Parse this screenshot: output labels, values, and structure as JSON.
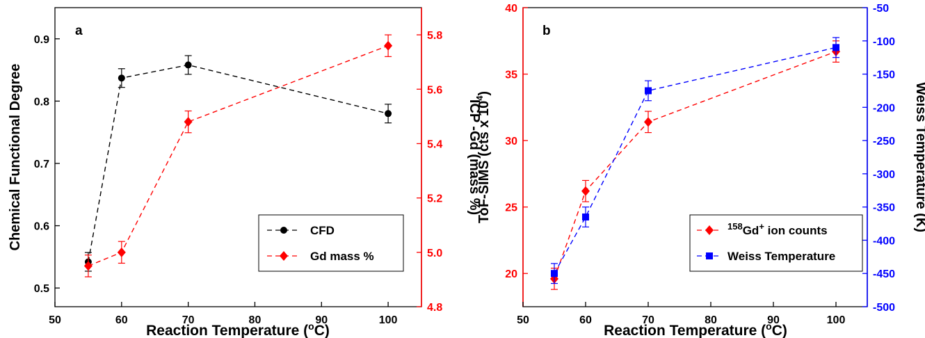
{
  "chart_data": [
    {
      "panel_label": "a",
      "type": "line",
      "xlabel": "Reaction Temperature (",
      "xlabel_deg": "o",
      "xlabel_tail": "C)",
      "ylabel": "Chemical Functional Degree",
      "ylabel_right": "ICP -Gd (mass %)",
      "xlim": [
        50,
        105
      ],
      "ylim": [
        0.47,
        0.95
      ],
      "ylim_right": [
        4.8,
        5.9
      ],
      "xticks": [
        "50",
        "60",
        "70",
        "80",
        "90",
        "100"
      ],
      "yticks": [
        "0.5",
        "0.6",
        "0.7",
        "0.8",
        "0.9"
      ],
      "yticks_right": [
        "4.8",
        "5.0",
        "5.2",
        "5.4",
        "5.6",
        "5.8"
      ],
      "legend_position": "bottom-right",
      "series": [
        {
          "name": "CFD",
          "axis": "left",
          "color": "#000000",
          "marker": "circle",
          "x": [
            55,
            60,
            70,
            100
          ],
          "y": [
            0.542,
            0.837,
            0.858,
            0.78
          ],
          "err": [
            0.015,
            0.015,
            0.015,
            0.015
          ]
        },
        {
          "name": "Gd mass %",
          "axis": "right",
          "color": "#ff0000",
          "marker": "diamond",
          "x": [
            55,
            60,
            70,
            100
          ],
          "y": [
            4.95,
            5.0,
            5.48,
            5.76
          ],
          "err": [
            0.04,
            0.04,
            0.04,
            0.04
          ]
        }
      ]
    },
    {
      "panel_label": "b",
      "type": "line",
      "xlabel": "Reaction Temperature (",
      "xlabel_deg": "o",
      "xlabel_tail": "C)",
      "ylabel": "ToF-SIMS (cts x 10",
      "ylabel_sup": "4",
      "ylabel_tail": ")",
      "ylabel_right": "Weiss Temperature (K)",
      "xlim": [
        50,
        105
      ],
      "ylim": [
        17.5,
        40
      ],
      "ylim_right": [
        -500,
        -50
      ],
      "xticks": [
        "50",
        "60",
        "70",
        "80",
        "90",
        "100"
      ],
      "yticks": [
        "20",
        "25",
        "30",
        "35",
        "40"
      ],
      "yticks_right": [
        "-500",
        "-450",
        "-400",
        "-350",
        "-300",
        "-250",
        "-200",
        "-150",
        "-100",
        "-50"
      ],
      "left_axis_color": "#ff0000",
      "right_axis_color": "#0000ff",
      "legend_position": "bottom-right",
      "series": [
        {
          "name": "Gd",
          "name_sup_pre": "158",
          "name_sup_post": "+",
          "name_tail": " ion counts",
          "axis": "left",
          "color": "#ff0000",
          "marker": "diamond",
          "x": [
            55,
            60,
            70,
            100
          ],
          "y": [
            19.6,
            26.2,
            31.4,
            36.7
          ],
          "err": [
            0.8,
            0.8,
            0.8,
            0.8
          ]
        },
        {
          "name": "Weiss Temperature",
          "axis": "right",
          "color": "#0000ff",
          "marker": "square",
          "x": [
            55,
            60,
            70,
            100
          ],
          "y": [
            -450,
            -365,
            -175,
            -110
          ],
          "err": [
            15,
            15,
            15,
            15
          ]
        }
      ]
    }
  ]
}
